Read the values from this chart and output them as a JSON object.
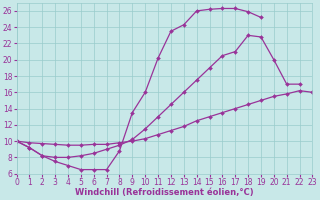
{
  "bg_color": "#c8e8e8",
  "grid_color": "#99cccc",
  "line_color": "#993399",
  "line_width": 0.9,
  "marker": "D",
  "marker_size": 2.0,
  "xlim": [
    0,
    23
  ],
  "ylim": [
    6,
    27
  ],
  "xlabel": "Windchill (Refroidissement éolien,°C)",
  "xlabel_fontsize": 6.0,
  "xticks": [
    0,
    1,
    2,
    3,
    4,
    5,
    6,
    7,
    8,
    9,
    10,
    11,
    12,
    13,
    14,
    15,
    16,
    17,
    18,
    19,
    20,
    21,
    22,
    23
  ],
  "yticks": [
    6,
    8,
    10,
    12,
    14,
    16,
    18,
    20,
    22,
    24,
    26
  ],
  "tick_fontsize": 5.5,
  "curve1_x": [
    0,
    1,
    2,
    3,
    4,
    5,
    6,
    7,
    8,
    9,
    10,
    11,
    12,
    13,
    14,
    15,
    16,
    17,
    18,
    19
  ],
  "curve1_y": [
    10.0,
    9.2,
    8.2,
    7.5,
    7.0,
    6.5,
    6.5,
    6.5,
    8.8,
    13.5,
    16.0,
    20.2,
    23.5,
    24.3,
    26.0,
    26.2,
    26.3,
    26.3,
    25.9,
    25.2
  ],
  "curve2_x": [
    0,
    1,
    2,
    3,
    4,
    5,
    6,
    7,
    8,
    9,
    10,
    11,
    12,
    13,
    14,
    15,
    16,
    17,
    18,
    19,
    20,
    21,
    22,
    23
  ],
  "curve2_y": [
    10.0,
    9.8,
    9.7,
    9.6,
    9.5,
    9.5,
    9.6,
    9.6,
    9.8,
    10.0,
    10.3,
    10.8,
    11.3,
    11.8,
    12.5,
    13.0,
    13.5,
    14.0,
    14.5,
    15.0,
    15.5,
    15.8,
    16.2,
    16.0
  ],
  "curve3_x": [
    0,
    1,
    2,
    3,
    4,
    5,
    6,
    7,
    8,
    9,
    10,
    11,
    12,
    13,
    14,
    15,
    16,
    17,
    18,
    19,
    20,
    21,
    22
  ],
  "curve3_y": [
    10.0,
    9.2,
    8.2,
    8.0,
    8.0,
    8.2,
    8.5,
    9.0,
    9.5,
    10.2,
    11.5,
    13.0,
    14.5,
    16.0,
    17.5,
    19.0,
    20.5,
    21.0,
    23.0,
    22.8,
    20.0,
    17.0,
    17.0
  ]
}
